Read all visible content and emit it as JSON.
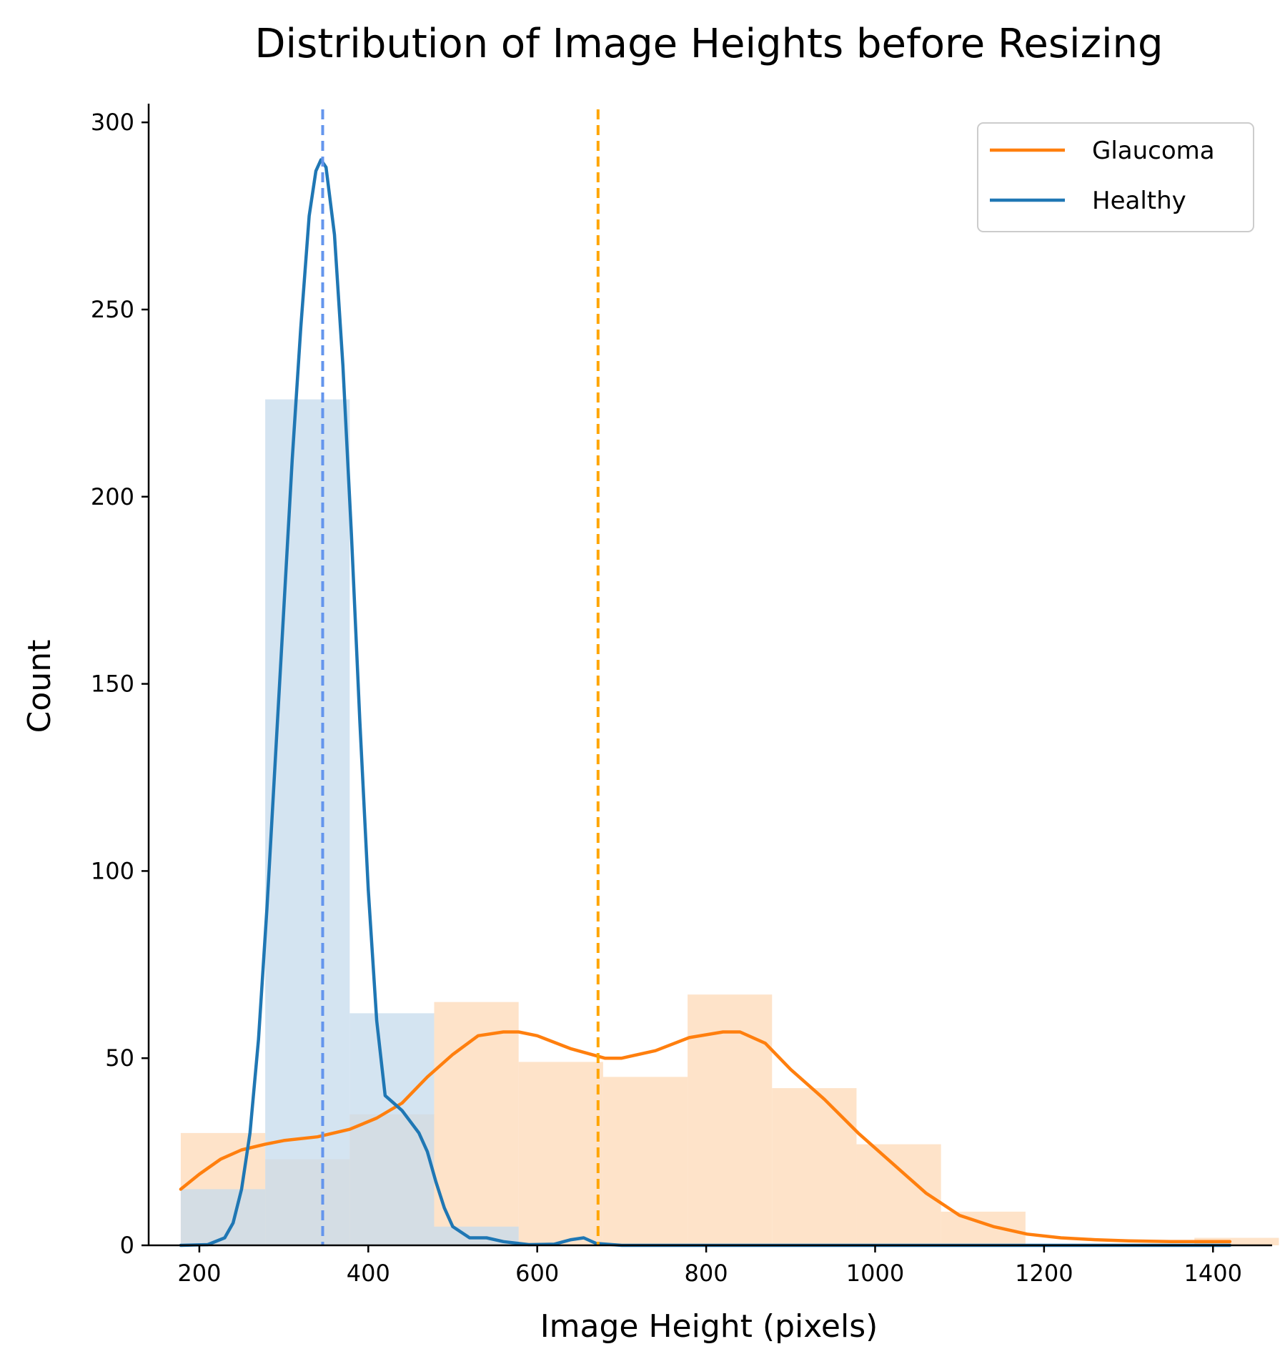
{
  "chart_data": {
    "type": "histogram",
    "title": "Distribution of Image Heights before Resizing",
    "xlabel": "Image Height (pixels)",
    "ylabel": "Count",
    "xlim": [
      140,
      1470
    ],
    "ylim": [
      0,
      305
    ],
    "xticks": [
      200,
      400,
      600,
      800,
      1000,
      1200,
      1400
    ],
    "yticks": [
      0,
      50,
      100,
      150,
      200,
      250,
      300
    ],
    "grid": false,
    "legend_position": "top-right",
    "series": [
      {
        "name": "Glaucoma",
        "color": "#ff7f0e",
        "bar_color": "#fdd9b7",
        "bins": [
          {
            "x0": 178,
            "x1": 278,
            "count": 30
          },
          {
            "x0": 278,
            "x1": 378,
            "count": 23
          },
          {
            "x0": 378,
            "x1": 478,
            "count": 35
          },
          {
            "x0": 478,
            "x1": 578,
            "count": 65
          },
          {
            "x0": 578,
            "x1": 678,
            "count": 49
          },
          {
            "x0": 678,
            "x1": 778,
            "count": 45
          },
          {
            "x0": 778,
            "x1": 878,
            "count": 67
          },
          {
            "x0": 878,
            "x1": 978,
            "count": 42
          },
          {
            "x0": 978,
            "x1": 1078,
            "count": 27
          },
          {
            "x0": 1078,
            "x1": 1178,
            "count": 9
          },
          {
            "x0": 1178,
            "x1": 1278,
            "count": 0
          },
          {
            "x0": 1278,
            "x1": 1378,
            "count": 0
          },
          {
            "x0": 1378,
            "x1": 1478,
            "count": 2
          }
        ],
        "kde": [
          [
            178,
            15
          ],
          [
            200,
            19
          ],
          [
            225,
            23
          ],
          [
            250,
            25.5
          ],
          [
            278,
            27
          ],
          [
            300,
            28
          ],
          [
            340,
            29
          ],
          [
            378,
            31
          ],
          [
            410,
            34
          ],
          [
            440,
            38
          ],
          [
            470,
            45
          ],
          [
            500,
            51
          ],
          [
            530,
            56
          ],
          [
            560,
            57
          ],
          [
            578,
            57
          ],
          [
            600,
            56
          ],
          [
            640,
            52.5
          ],
          [
            680,
            50
          ],
          [
            700,
            50
          ],
          [
            740,
            52
          ],
          [
            780,
            55.5
          ],
          [
            820,
            57
          ],
          [
            840,
            57
          ],
          [
            870,
            54
          ],
          [
            900,
            47
          ],
          [
            940,
            39
          ],
          [
            980,
            30
          ],
          [
            1020,
            22
          ],
          [
            1060,
            14
          ],
          [
            1100,
            8
          ],
          [
            1140,
            5
          ],
          [
            1180,
            3
          ],
          [
            1220,
            2
          ],
          [
            1260,
            1.5
          ],
          [
            1300,
            1.2
          ],
          [
            1350,
            1
          ],
          [
            1420,
            1
          ]
        ],
        "mean_line": 672
      },
      {
        "name": "Healthy",
        "color": "#1f77b4",
        "bar_color": "#c5dbec",
        "bins": [
          {
            "x0": 178,
            "x1": 278,
            "count": 15
          },
          {
            "x0": 278,
            "x1": 378,
            "count": 226
          },
          {
            "x0": 378,
            "x1": 478,
            "count": 62
          },
          {
            "x0": 478,
            "x1": 578,
            "count": 5
          },
          {
            "x0": 578,
            "x1": 678,
            "count": 0
          },
          {
            "x0": 678,
            "x1": 778,
            "count": 0
          },
          {
            "x0": 778,
            "x1": 878,
            "count": 0
          },
          {
            "x0": 878,
            "x1": 978,
            "count": 0
          },
          {
            "x0": 978,
            "x1": 1078,
            "count": 0
          },
          {
            "x0": 1078,
            "x1": 1178,
            "count": 0
          }
        ],
        "kde": [
          [
            178,
            0
          ],
          [
            210,
            0.2
          ],
          [
            230,
            2
          ],
          [
            240,
            6
          ],
          [
            250,
            15
          ],
          [
            260,
            30
          ],
          [
            270,
            55
          ],
          [
            280,
            90
          ],
          [
            290,
            130
          ],
          [
            300,
            170
          ],
          [
            310,
            210
          ],
          [
            320,
            245
          ],
          [
            330,
            275
          ],
          [
            338,
            287
          ],
          [
            344,
            290
          ],
          [
            350,
            288
          ],
          [
            360,
            270
          ],
          [
            370,
            235
          ],
          [
            380,
            190
          ],
          [
            390,
            140
          ],
          [
            400,
            95
          ],
          [
            410,
            60
          ],
          [
            420,
            40
          ],
          [
            430,
            38
          ],
          [
            440,
            36
          ],
          [
            450,
            33
          ],
          [
            460,
            30
          ],
          [
            470,
            25
          ],
          [
            480,
            17
          ],
          [
            490,
            10
          ],
          [
            500,
            5
          ],
          [
            520,
            2
          ],
          [
            540,
            2
          ],
          [
            560,
            1
          ],
          [
            590,
            0.2
          ],
          [
            620,
            0.3
          ],
          [
            640,
            1.5
          ],
          [
            655,
            2
          ],
          [
            670,
            0.5
          ],
          [
            700,
            0
          ],
          [
            800,
            0
          ],
          [
            900,
            0
          ],
          [
            1000,
            0
          ],
          [
            1100,
            0
          ],
          [
            1200,
            0
          ],
          [
            1300,
            0
          ],
          [
            1420,
            0
          ]
        ],
        "mean_line": 346
      }
    ],
    "mean_line_colors": {
      "Glaucoma": "#ffa500",
      "Healthy": "#6495ed"
    }
  }
}
